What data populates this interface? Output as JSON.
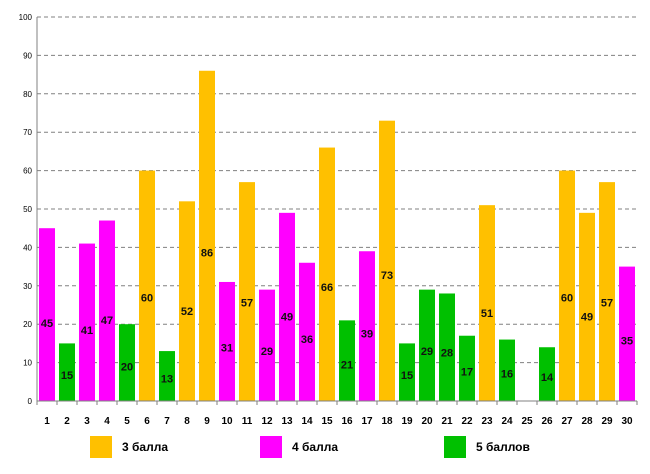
{
  "chart_data": {
    "type": "bar",
    "title": "",
    "xlabel": "",
    "ylabel": "",
    "ylim": [
      0,
      100
    ],
    "yticks": [
      "0",
      "10",
      "20",
      "30",
      "40",
      "50",
      "60",
      "70",
      "80",
      "90",
      "100"
    ],
    "grid": true,
    "categories": [
      "1",
      "2",
      "3",
      "4",
      "5",
      "6",
      "7",
      "8",
      "9",
      "10",
      "11",
      "12",
      "13",
      "14",
      "15",
      "16",
      "17",
      "18",
      "19",
      "20",
      "21",
      "22",
      "23",
      "24",
      "25",
      "26",
      "27",
      "28",
      "29",
      "30"
    ],
    "values": [
      45,
      15,
      41,
      47,
      20,
      60,
      13,
      52,
      86,
      31,
      57,
      29,
      49,
      36,
      66,
      21,
      39,
      73,
      15,
      29,
      28,
      17,
      51,
      16,
      null,
      14,
      60,
      49,
      57,
      35
    ],
    "groups": [
      "4",
      "5",
      "4",
      "4",
      "5",
      "3",
      "5",
      "3",
      "3",
      "4",
      "3",
      "4",
      "4",
      "4",
      "3",
      "5",
      "4",
      "3",
      "5",
      "5",
      "5",
      "5",
      "3",
      "5",
      null,
      "5",
      "3",
      "3",
      "3",
      "4"
    ],
    "legend": [
      {
        "key": "3",
        "label": "3 балла",
        "color": "#FFC000"
      },
      {
        "key": "4",
        "label": "4 балла",
        "color": "#FF00FF"
      },
      {
        "key": "5",
        "label": "5 баллов",
        "color": "#00C000"
      }
    ]
  }
}
